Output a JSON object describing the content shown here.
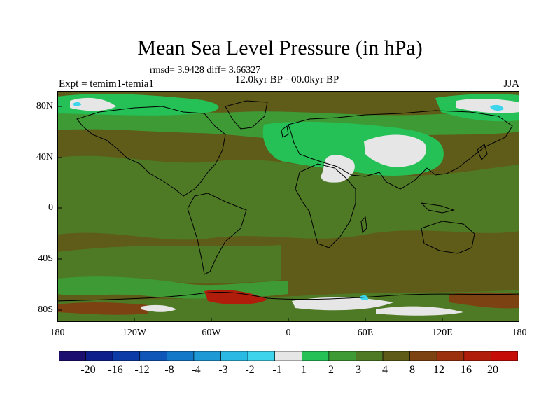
{
  "title": "Mean Sea Level Pressure (in hPa)",
  "stats": "rmsd= 3.9428 diff= 3.66327",
  "experiment": "Expt = temim1-temia1",
  "period": "12.0kyr BP - 00.0kyr BP",
  "season": "JJA",
  "y_ticks": [
    "80N",
    "40N",
    "0",
    "40S",
    "80S"
  ],
  "x_ticks": [
    "180",
    "120W",
    "60W",
    "0",
    "60E",
    "120E",
    "180"
  ],
  "colorbar": {
    "labels": [
      "-20",
      "-16",
      "-12",
      "-8",
      "-4",
      "-3",
      "-2",
      "-1",
      "1",
      "2",
      "3",
      "4",
      "8",
      "12",
      "16",
      "20"
    ],
    "colors": [
      "#1b0e6e",
      "#0d1f8a",
      "#0c3aa6",
      "#0f56b8",
      "#1478c8",
      "#1d9ad6",
      "#2ab9e2",
      "#3dd4ec",
      "#e6e6e6",
      "#25c156",
      "#3e9a35",
      "#4e7a25",
      "#5e5a18",
      "#7d4212",
      "#9a300e",
      "#b01d0a",
      "#c60c06"
    ]
  },
  "field_colors": {
    "ocean": "#5f5b18",
    "moderate": "#4e7a25",
    "weak": "#3e9a35",
    "low": "#25c156",
    "near_zero": "#e6e6e6",
    "negative": "#3dd4ec",
    "positive": "#7d4212",
    "strong": "#b01d0a",
    "coast": "#000000"
  }
}
